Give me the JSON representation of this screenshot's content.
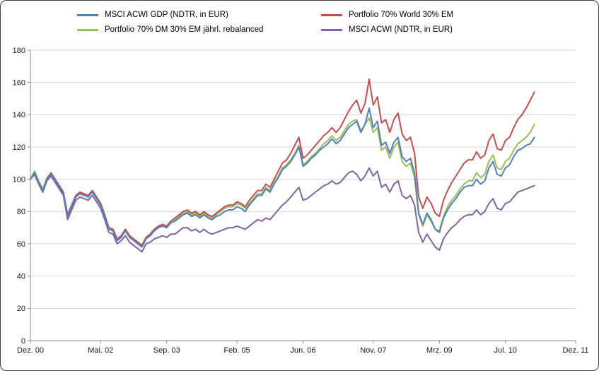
{
  "chart_data": {
    "type": "line",
    "grid": "horizontal",
    "legend_position": "top",
    "x_axis": {
      "tick_labels": [
        "Dez. 00",
        "Mai. 02",
        "Sep. 03",
        "Feb. 05",
        "Jun. 06",
        "Nov. 07",
        "Mrz. 09",
        "Jul. 10",
        "Dez. 11"
      ],
      "tick_months": [
        0,
        17,
        33,
        50,
        66,
        83,
        99,
        115,
        132
      ],
      "range_months": [
        0,
        132
      ],
      "frequency": "monthly"
    },
    "y_axis": {
      "min": 0,
      "max": 180,
      "step": 20,
      "tick_labels": [
        "0",
        "20",
        "40",
        "60",
        "80",
        "100",
        "120",
        "140",
        "160",
        "180"
      ]
    },
    "series": [
      {
        "name": "MSCI ACWI GDP (NDTR, in EUR)",
        "color": "#4F81BD",
        "values": [
          100,
          104,
          98,
          93,
          100,
          103,
          99,
          95,
          91,
          77,
          83,
          89,
          91,
          90,
          89,
          92,
          88,
          84,
          77,
          69,
          68,
          62,
          64,
          68,
          64,
          62,
          60,
          58,
          63,
          65,
          68,
          70,
          71,
          70,
          73,
          74,
          76,
          78,
          79,
          77,
          78,
          76,
          78,
          76,
          75,
          77,
          78,
          80,
          81,
          81,
          83,
          82,
          80,
          84,
          87,
          90,
          90,
          94,
          92,
          97,
          101,
          106,
          108,
          111,
          115,
          120,
          108,
          110,
          113,
          115,
          118,
          120,
          122,
          125,
          122,
          124,
          128,
          132,
          134,
          136,
          129,
          134,
          144,
          132,
          136,
          121,
          123,
          116,
          123,
          126,
          114,
          111,
          113,
          104,
          79,
          72,
          79,
          75,
          69,
          67,
          76,
          81,
          85,
          88,
          92,
          95,
          96,
          96,
          100,
          97,
          99,
          107,
          111,
          103,
          102,
          107,
          109,
          114,
          118,
          119,
          121,
          122,
          126
        ]
      },
      {
        "name": "Portfolio 70% World 30% EM",
        "color": "#C0504D",
        "values": [
          100,
          104,
          98,
          93,
          100,
          104,
          100,
          96,
          92,
          78,
          84,
          90,
          92,
          91,
          90,
          93,
          89,
          85,
          78,
          70,
          69,
          63,
          65,
          69,
          65,
          63,
          61,
          59,
          64,
          66,
          69,
          71,
          72,
          71,
          74,
          76,
          78,
          80,
          81,
          79,
          80,
          78,
          80,
          78,
          77,
          79,
          81,
          83,
          84,
          84,
          86,
          85,
          83,
          87,
          90,
          93,
          93,
          97,
          95,
          100,
          105,
          110,
          112,
          116,
          121,
          126,
          113,
          115,
          118,
          121,
          124,
          127,
          129,
          132,
          129,
          132,
          137,
          142,
          146,
          149,
          141,
          147,
          162,
          146,
          151,
          135,
          137,
          129,
          137,
          141,
          128,
          124,
          126,
          116,
          89,
          82,
          89,
          85,
          79,
          77,
          87,
          93,
          98,
          102,
          106,
          110,
          112,
          112,
          117,
          113,
          115,
          124,
          128,
          119,
          118,
          124,
          126,
          132,
          137,
          140,
          144,
          149,
          154
        ]
      },
      {
        "name": "Portfolio 70% DM 30% EM jährl. rebalanced",
        "color": "#9BBB59",
        "values": [
          100,
          105,
          99,
          94,
          101,
          104,
          100,
          96,
          92,
          78,
          84,
          90,
          92,
          91,
          90,
          93,
          89,
          85,
          78,
          70,
          69,
          63,
          65,
          69,
          65,
          63,
          61,
          59,
          64,
          66,
          69,
          71,
          72,
          71,
          74,
          75,
          77,
          79,
          80,
          78,
          79,
          77,
          79,
          77,
          76,
          78,
          80,
          82,
          83,
          83,
          85,
          84,
          82,
          85,
          88,
          91,
          91,
          95,
          93,
          98,
          102,
          107,
          109,
          112,
          116,
          121,
          109,
          111,
          114,
          116,
          119,
          122,
          124,
          127,
          124,
          126,
          130,
          134,
          136,
          137,
          130,
          134,
          138,
          129,
          132,
          118,
          120,
          113,
          120,
          123,
          111,
          108,
          110,
          101,
          78,
          71,
          78,
          74,
          69,
          68,
          77,
          83,
          87,
          90,
          94,
          97,
          99,
          99,
          104,
          101,
          103,
          111,
          115,
          107,
          106,
          111,
          113,
          118,
          122,
          124,
          126,
          129,
          134
        ]
      },
      {
        "name": "MSCI ACWI (NDTR, in EUR)",
        "color": "#8064A2",
        "values": [
          100,
          103,
          97,
          92,
          99,
          102,
          98,
          94,
          90,
          75,
          81,
          87,
          89,
          88,
          87,
          90,
          86,
          82,
          75,
          67,
          66,
          60,
          62,
          65,
          61,
          59,
          57,
          55,
          60,
          61,
          63,
          64,
          65,
          64,
          66,
          66,
          68,
          70,
          70,
          68,
          69,
          67,
          69,
          67,
          66,
          67,
          68,
          69,
          70,
          70,
          71,
          70,
          69,
          71,
          73,
          75,
          74,
          76,
          75,
          78,
          81,
          84,
          86,
          89,
          92,
          95,
          87,
          88,
          90,
          92,
          94,
          96,
          97,
          99,
          97,
          98,
          101,
          104,
          105,
          103,
          99,
          102,
          107,
          102,
          105,
          95,
          97,
          92,
          97,
          99,
          90,
          88,
          90,
          84,
          67,
          61,
          66,
          62,
          58,
          56,
          63,
          67,
          70,
          72,
          75,
          77,
          78,
          78,
          81,
          78,
          80,
          85,
          88,
          82,
          81,
          85,
          86,
          89,
          92,
          93,
          94,
          95,
          96
        ]
      }
    ],
    "style": {
      "gridline_color": "#D6D6D6",
      "axis_color": "#8C8C8C",
      "background": "#FFFFFF"
    }
  }
}
